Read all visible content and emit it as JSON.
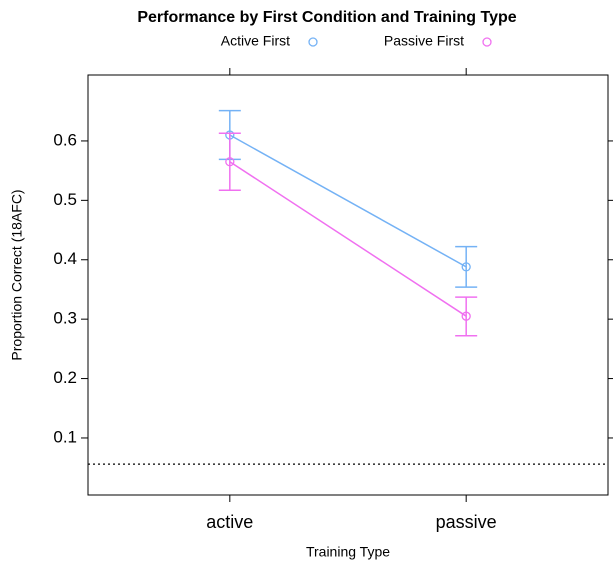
{
  "chart_data": {
    "type": "line",
    "title": "Performance by First Condition and Training Type",
    "x_label": "Training Type",
    "y_label": "Proportion Correct (18AFC)",
    "categories": [
      "active",
      "passive"
    ],
    "series": [
      {
        "name": "Active First",
        "color": "#74b2f5",
        "values": [
          0.61,
          0.388
        ],
        "lower": [
          0.569,
          0.354
        ],
        "upper": [
          0.651,
          0.422
        ]
      },
      {
        "name": "Passive First",
        "color": "#f070f0",
        "values": [
          0.565,
          0.305
        ],
        "lower": [
          0.517,
          0.272
        ],
        "upper": [
          0.613,
          0.337
        ]
      }
    ],
    "reference_line": 0.056,
    "ylim": [
      0.004,
      0.711
    ],
    "yticks": [
      0.1,
      0.2,
      0.3,
      0.4,
      0.5,
      0.6
    ],
    "legend": "top"
  }
}
